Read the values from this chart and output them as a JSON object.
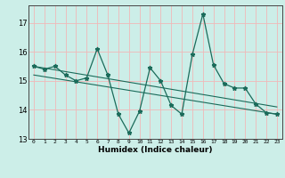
{
  "title": "",
  "xlabel": "Humidex (Indice chaleur)",
  "ylabel": "",
  "bg_color": "#cceee8",
  "grid_color": "#f0b8b8",
  "line_color": "#1a6b5a",
  "xlim": [
    -0.5,
    23.5
  ],
  "ylim": [
    13,
    17.6
  ],
  "yticks": [
    13,
    14,
    15,
    16,
    17
  ],
  "xticks": [
    0,
    1,
    2,
    3,
    4,
    5,
    6,
    7,
    8,
    9,
    10,
    11,
    12,
    13,
    14,
    15,
    16,
    17,
    18,
    19,
    20,
    21,
    22,
    23
  ],
  "series1_x": [
    0,
    1,
    2,
    3,
    4,
    5,
    6,
    7,
    8,
    9,
    10,
    11,
    12,
    13,
    14,
    15,
    16,
    17,
    18,
    19,
    20,
    21,
    22,
    23
  ],
  "series1_y": [
    15.5,
    15.4,
    15.5,
    15.2,
    15.0,
    15.1,
    16.1,
    15.2,
    13.85,
    13.2,
    13.95,
    15.45,
    15.0,
    14.15,
    13.85,
    15.9,
    17.3,
    15.55,
    14.9,
    14.75,
    14.75,
    14.2,
    13.9,
    13.85
  ],
  "trend_x": [
    0,
    23
  ],
  "trend_y": [
    15.5,
    14.1
  ],
  "trend2_x": [
    0,
    23
  ],
  "trend2_y": [
    15.2,
    13.85
  ]
}
